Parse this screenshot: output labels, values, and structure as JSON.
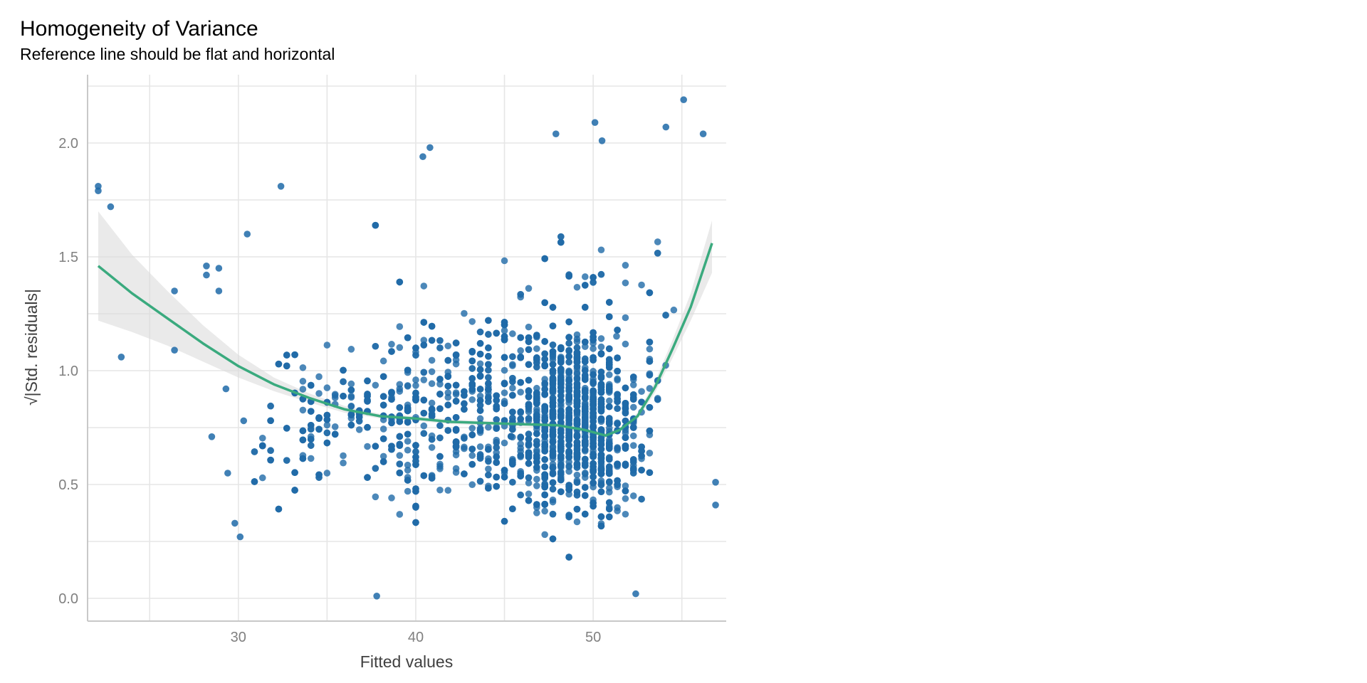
{
  "chart_data": {
    "type": "scatter",
    "title": "Homogeneity of Variance",
    "subtitle": "Reference line should be flat and horizontal",
    "xlabel": "Fitted values",
    "ylabel": "√|Std. residuals|",
    "xlim": [
      21.5,
      57.5
    ],
    "ylim": [
      -0.1,
      2.3
    ],
    "x_ticks": [
      30,
      40,
      50
    ],
    "x_tick_labels": [
      "30",
      "40",
      "50"
    ],
    "y_ticks": [
      0.0,
      0.5,
      1.0,
      1.5,
      2.0
    ],
    "y_tick_labels": [
      "0.0",
      "0.5",
      "1.0",
      "1.5",
      "2.0"
    ],
    "grid": true,
    "point_color": "#1f6aa8",
    "smooth_color": "#3aaa7e",
    "band_color": "#d9d9d9",
    "n_points_approx": 2500,
    "highlighted_points": [
      {
        "x": 22.1,
        "y": 1.81
      },
      {
        "x": 22.1,
        "y": 1.79
      },
      {
        "x": 22.8,
        "y": 1.72
      },
      {
        "x": 23.4,
        "y": 1.06
      },
      {
        "x": 26.4,
        "y": 1.35
      },
      {
        "x": 26.4,
        "y": 1.09
      },
      {
        "x": 28.2,
        "y": 1.46
      },
      {
        "x": 28.2,
        "y": 1.42
      },
      {
        "x": 28.5,
        "y": 0.71
      },
      {
        "x": 28.9,
        "y": 1.45
      },
      {
        "x": 28.9,
        "y": 1.35
      },
      {
        "x": 29.3,
        "y": 0.92
      },
      {
        "x": 29.4,
        "y": 0.55
      },
      {
        "x": 29.8,
        "y": 0.33
      },
      {
        "x": 30.1,
        "y": 0.27
      },
      {
        "x": 30.3,
        "y": 0.78
      },
      {
        "x": 30.5,
        "y": 1.6
      },
      {
        "x": 32.4,
        "y": 1.81
      },
      {
        "x": 40.4,
        "y": 1.94
      },
      {
        "x": 40.8,
        "y": 1.98
      },
      {
        "x": 47.9,
        "y": 2.04
      },
      {
        "x": 50.1,
        "y": 2.09
      },
      {
        "x": 50.5,
        "y": 2.01
      },
      {
        "x": 54.1,
        "y": 2.07
      },
      {
        "x": 55.1,
        "y": 2.19
      },
      {
        "x": 56.2,
        "y": 2.04
      },
      {
        "x": 56.9,
        "y": 0.51
      },
      {
        "x": 56.9,
        "y": 0.41
      },
      {
        "x": 37.8,
        "y": 0.01
      },
      {
        "x": 52.4,
        "y": 0.02
      }
    ],
    "smooth_line": {
      "x": [
        22.1,
        24,
        26,
        28,
        30,
        32,
        34,
        36,
        38,
        40,
        42,
        44,
        46,
        48,
        49.5,
        50.7,
        51.5,
        52.5,
        53.5,
        54.5,
        55.5,
        56.7
      ],
      "y": [
        1.46,
        1.34,
        1.23,
        1.12,
        1.02,
        0.94,
        0.88,
        0.83,
        0.8,
        0.79,
        0.775,
        0.77,
        0.765,
        0.76,
        0.74,
        0.715,
        0.74,
        0.8,
        0.93,
        1.1,
        1.28,
        1.56
      ]
    },
    "ci_band": {
      "x": [
        22.1,
        24,
        26,
        28,
        30,
        32,
        34,
        36,
        38,
        40,
        42,
        44,
        46,
        48,
        49.5,
        50.7,
        51.5,
        52.5,
        53.5,
        54.5,
        55.5,
        56.7
      ],
      "lower": [
        1.22,
        1.17,
        1.11,
        1.04,
        0.97,
        0.91,
        0.86,
        0.815,
        0.79,
        0.78,
        0.765,
        0.76,
        0.755,
        0.75,
        0.73,
        0.705,
        0.73,
        0.785,
        0.905,
        1.06,
        1.22,
        1.43
      ],
      "upper": [
        1.7,
        1.51,
        1.35,
        1.2,
        1.07,
        0.97,
        0.9,
        0.845,
        0.81,
        0.8,
        0.785,
        0.78,
        0.775,
        0.77,
        0.75,
        0.725,
        0.75,
        0.815,
        0.955,
        1.14,
        1.34,
        1.66
      ]
    }
  }
}
